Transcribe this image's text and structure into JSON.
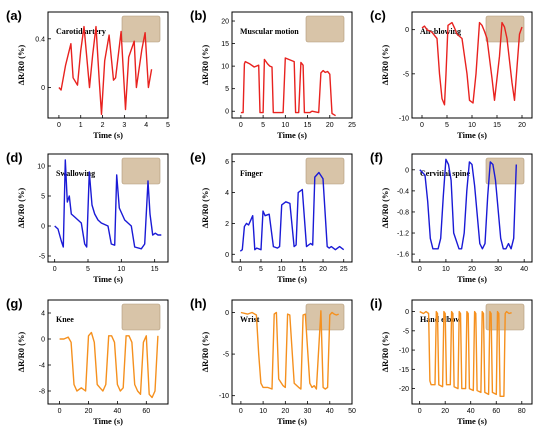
{
  "chart_data": [
    {
      "type": "line",
      "panel": "(a)",
      "title": "Carotid artery",
      "xlabel": "Time (s)",
      "ylabel": "ΔR/R0 (%)",
      "xlim": [
        -0.5,
        5
      ],
      "ylim": [
        -0.25,
        0.62
      ],
      "xticks": [
        0,
        1,
        2,
        3,
        4,
        5
      ],
      "yticks": [
        0.0,
        0.4
      ],
      "color": "#e8221f",
      "series": [
        {
          "x": [
            0,
            0.1,
            0.3,
            0.55,
            0.65,
            0.85,
            1.0,
            1.15,
            1.4,
            1.55,
            1.7,
            1.85,
            1.95,
            2.1,
            2.3,
            2.5,
            2.6,
            2.85,
            3.05,
            3.2,
            3.45,
            3.55,
            3.8,
            3.95,
            4.1,
            4.25
          ],
          "y": [
            0.0,
            -0.02,
            0.18,
            0.36,
            0.08,
            0.02,
            0.3,
            0.5,
            0.0,
            0.27,
            0.5,
            0.05,
            -0.22,
            0.22,
            0.43,
            0.06,
            0.08,
            0.46,
            -0.18,
            0.25,
            0.38,
            0.0,
            0.31,
            0.45,
            0.0,
            0.15
          ]
        }
      ]
    },
    {
      "type": "line",
      "panel": "(b)",
      "title": "Muscular motion",
      "xlabel": "Time (s)",
      "ylabel": "ΔR/R0 (%)",
      "xlim": [
        -2,
        25
      ],
      "ylim": [
        -1.5,
        22
      ],
      "xticks": [
        0,
        5,
        10,
        15,
        20,
        25
      ],
      "yticks": [
        0,
        5,
        10,
        15,
        20
      ],
      "color": "#e8221f",
      "series": [
        {
          "x": [
            0,
            0.5,
            0.8,
            1.0,
            2.0,
            3.0,
            4.0,
            4.3,
            5.0,
            5.3,
            6.0,
            6.5,
            7.0,
            7.3,
            9.5,
            10.0,
            12.0,
            12.3,
            13.0,
            13.5,
            14.0,
            14.3,
            15.5,
            16.0,
            17.5,
            18.0,
            18.5,
            19.0,
            19.5,
            20.0,
            20.5,
            21.0,
            21.3
          ],
          "y": [
            -0.3,
            -0.3,
            10.5,
            11.0,
            10.5,
            9.8,
            10.2,
            -0.3,
            -0.3,
            11.5,
            10.5,
            10.0,
            9.8,
            -0.3,
            -0.3,
            11.8,
            11.0,
            -0.3,
            -0.3,
            10.8,
            10.2,
            -0.3,
            -0.3,
            0.0,
            -0.3,
            8.5,
            9.0,
            8.6,
            8.8,
            8.2,
            -0.5,
            -0.8,
            -1.0
          ]
        }
      ]
    },
    {
      "type": "line",
      "panel": "(c)",
      "title": "Air-blowing",
      "xlabel": "Time (s)",
      "ylabel": "ΔR/R0 (%)",
      "xlim": [
        -2,
        22
      ],
      "ylim": [
        -10,
        2
      ],
      "xticks": [
        0,
        5,
        10,
        15,
        20
      ],
      "yticks": [
        0,
        -5,
        -10
      ],
      "color": "#e8221f",
      "series": [
        {
          "x": [
            0,
            0.5,
            1.0,
            2.0,
            3.0,
            3.5,
            4.0,
            4.5,
            4.8,
            5.2,
            6.0,
            6.5,
            7.0,
            8.0,
            9.0,
            9.5,
            10.2,
            10.8,
            11.5,
            12.0,
            12.5,
            13.0,
            14.0,
            14.5,
            15.5,
            16.0,
            16.5,
            17.0,
            18.0,
            18.5,
            19.5,
            20.0
          ],
          "y": [
            0.2,
            0.4,
            0.0,
            -0.3,
            -1.0,
            -5.0,
            -7.8,
            -8.5,
            -5.0,
            0.5,
            0.8,
            0.2,
            -0.5,
            -1.0,
            -5.0,
            -8.0,
            -8.3,
            -5.0,
            0.8,
            0.5,
            -0.2,
            -1.0,
            -5.5,
            -8.0,
            -3.0,
            0.8,
            0.3,
            -1.0,
            -6.0,
            -8.0,
            -0.5,
            0.3
          ]
        }
      ]
    },
    {
      "type": "line",
      "panel": "(d)",
      "title": "Swallowing",
      "xlabel": "Time (s)",
      "ylabel": "ΔR/R0 (%)",
      "xlim": [
        -1,
        17
      ],
      "ylim": [
        -6,
        12
      ],
      "xticks": [
        0,
        5,
        10,
        15
      ],
      "yticks": [
        -5,
        0,
        5,
        10
      ],
      "color": "#1a1ad6",
      "series": [
        {
          "x": [
            0,
            0.5,
            1.0,
            1.3,
            1.6,
            1.9,
            2.2,
            2.5,
            3.0,
            3.5,
            4.0,
            4.5,
            4.8,
            5.2,
            5.6,
            6.0,
            6.5,
            7.0,
            8.0,
            8.5,
            9.0,
            9.3,
            9.7,
            10.1,
            10.5,
            11.0,
            11.5,
            12.0,
            13.0,
            13.5,
            14.0,
            14.3,
            14.7,
            15.1,
            15.5,
            16.0
          ],
          "y": [
            0,
            -0.5,
            -2.5,
            -3.5,
            11.0,
            4.0,
            5.0,
            2.0,
            1.5,
            1.0,
            0.5,
            -3.0,
            -3.5,
            9.0,
            3.5,
            2.0,
            1.0,
            0.5,
            0.0,
            -3.0,
            -3.2,
            8.5,
            3.0,
            2.0,
            1.0,
            0.5,
            0.0,
            -3.5,
            -3.8,
            -3.0,
            7.5,
            2.0,
            -1.5,
            -1.2,
            -1.5,
            -1.5
          ]
        }
      ]
    },
    {
      "type": "line",
      "panel": "(e)",
      "title": "Finger",
      "xlabel": "Time (s)",
      "ylabel": "ΔR/R0 (%)",
      "xlim": [
        -2,
        27
      ],
      "ylim": [
        -0.5,
        6.5
      ],
      "xticks": [
        0,
        5,
        10,
        15,
        20,
        25
      ],
      "yticks": [
        0,
        2,
        4,
        6
      ],
      "color": "#1a1ad6",
      "series": [
        {
          "x": [
            0,
            0.5,
            1.0,
            1.5,
            2.0,
            3.0,
            3.5,
            4.0,
            5.0,
            5.5,
            6.0,
            7.0,
            8.0,
            9.0,
            9.5,
            10.0,
            11.0,
            12.0,
            13.0,
            13.5,
            14.0,
            15.0,
            16.0,
            17.0,
            17.5,
            18.0,
            19.0,
            20.0,
            21.0,
            21.5,
            22.0,
            23.0,
            24.0,
            25.0
          ],
          "y": [
            0.2,
            0.3,
            1.8,
            2.0,
            1.9,
            2.5,
            0.3,
            0.4,
            0.3,
            2.8,
            2.5,
            2.6,
            0.5,
            0.4,
            0.5,
            3.2,
            3.4,
            3.3,
            0.5,
            0.6,
            4.0,
            4.2,
            0.5,
            0.7,
            0.6,
            5.0,
            5.3,
            4.9,
            0.5,
            0.4,
            0.5,
            0.3,
            0.5,
            0.3
          ]
        }
      ]
    },
    {
      "type": "line",
      "panel": "(f)",
      "title": "Cervitial spine",
      "xlabel": "Time (s)",
      "ylabel": "ΔR/R0 (%)",
      "xlim": [
        -3,
        43
      ],
      "ylim": [
        -1.75,
        0.3
      ],
      "xticks": [
        0,
        10,
        20,
        30,
        40
      ],
      "yticks": [
        0.0,
        -0.4,
        -0.8,
        -1.2,
        -1.6
      ],
      "color": "#1a1ad6",
      "series": [
        {
          "x": [
            0,
            2,
            3,
            4,
            5,
            7,
            8,
            9,
            10,
            11,
            12,
            13,
            15,
            16,
            17,
            18,
            19,
            20,
            21,
            23,
            24,
            25,
            26,
            27,
            28,
            29,
            31,
            32,
            33,
            34,
            35,
            36,
            37
          ],
          "y": [
            0.0,
            -0.1,
            -0.6,
            -1.3,
            -1.5,
            -1.5,
            -1.3,
            -0.5,
            0.2,
            0.1,
            -0.2,
            -1.2,
            -1.5,
            -1.5,
            -1.2,
            -0.4,
            0.15,
            0.1,
            -0.3,
            -1.4,
            -1.5,
            -1.4,
            -0.5,
            0.15,
            0.1,
            -0.2,
            -1.3,
            -1.5,
            -1.5,
            -1.4,
            -1.5,
            -1.3,
            0.1
          ]
        }
      ]
    },
    {
      "type": "line",
      "panel": "(g)",
      "title": "Knee",
      "xlabel": "Time (s)",
      "ylabel": "ΔR/R0 (%)",
      "xlim": [
        -8,
        75
      ],
      "ylim": [
        -10,
        6
      ],
      "xticks": [
        0,
        20,
        40,
        60
      ],
      "yticks": [
        4,
        0,
        -4,
        -8
      ],
      "color": "#f5901e",
      "series": [
        {
          "x": [
            0,
            3,
            6,
            8,
            10,
            12,
            15,
            18,
            20,
            22,
            24,
            26,
            28,
            30,
            32,
            34,
            36,
            38,
            40,
            42,
            44,
            46,
            48,
            50,
            52,
            54,
            56,
            58,
            60,
            62,
            64,
            66,
            68
          ],
          "y": [
            0,
            0,
            0.3,
            -0.5,
            -7,
            -8,
            -7.5,
            -8,
            0.5,
            1,
            -0.5,
            -7,
            -7.5,
            -8,
            -7,
            0.5,
            0.5,
            -0.5,
            -7,
            -8,
            -7.5,
            0.5,
            0.5,
            -0.5,
            -7,
            -8,
            -8.5,
            -0.5,
            0.5,
            -8.5,
            -9,
            -8,
            0.5
          ]
        }
      ]
    },
    {
      "type": "line",
      "panel": "(h)",
      "title": "Wrist",
      "xlabel": "Time (s)",
      "ylabel": "ΔR/R0 (%)",
      "xlim": [
        -4,
        50
      ],
      "ylim": [
        -11,
        1.5
      ],
      "xticks": [
        0,
        10,
        20,
        30,
        40,
        50
      ],
      "yticks": [
        0,
        -5,
        -10
      ],
      "color": "#f5901e",
      "series": [
        {
          "x": [
            0,
            3,
            5,
            7,
            8,
            9,
            10,
            12,
            14,
            15,
            16,
            17,
            19,
            20,
            21,
            22,
            24,
            26,
            27,
            28,
            29,
            31,
            32,
            33,
            34,
            36,
            37,
            38,
            39,
            40,
            41,
            42,
            43,
            44
          ],
          "y": [
            0,
            -0.2,
            0,
            -0.3,
            -5,
            -8.5,
            -9,
            -9,
            -9.2,
            -0.2,
            0,
            -8,
            -8.8,
            -9,
            -0.2,
            -0.3,
            -8.5,
            -9,
            -9.2,
            -0.3,
            -0.2,
            -8.5,
            -9,
            -8.8,
            -9.2,
            0.2,
            -9,
            -9.2,
            -9,
            -0.3,
            0,
            -0.2,
            -0.3,
            -0.2
          ]
        }
      ]
    },
    {
      "type": "line",
      "panel": "(i)",
      "title": "Hand elbow",
      "xlabel": "Time (s)",
      "ylabel": "ΔR/R0 (%)",
      "xlim": [
        -6,
        88
      ],
      "ylim": [
        -24,
        3
      ],
      "xticks": [
        0,
        20,
        40,
        60,
        80
      ],
      "yticks": [
        0,
        -5,
        -10,
        -15,
        -20
      ],
      "color": "#f5901e",
      "series": [
        {
          "x": [
            0,
            3,
            5,
            7,
            8,
            9,
            12,
            13,
            14,
            15,
            18,
            19,
            20,
            21,
            24,
            25,
            26,
            27,
            30,
            31,
            32,
            33,
            36,
            37,
            38,
            39,
            42,
            43,
            44,
            45,
            48,
            49,
            50,
            51,
            54,
            55,
            56,
            57,
            60,
            61,
            62,
            63,
            66,
            67,
            68,
            70,
            72
          ],
          "y": [
            0,
            -0.5,
            0,
            -0.5,
            -18,
            -19,
            -19,
            0,
            -0.5,
            -19,
            -19.5,
            0,
            -0.5,
            -19,
            -19,
            0,
            -0.5,
            -19.5,
            -20,
            0,
            -0.5,
            -20,
            -20,
            0,
            -0.5,
            -20,
            -20.5,
            0,
            -0.5,
            -20.5,
            -21,
            0,
            -0.5,
            -21,
            -21.5,
            0,
            -0.5,
            -21,
            -21.5,
            0,
            -0.5,
            -22,
            -22,
            -0.5,
            0,
            -0.5,
            -0.3
          ]
        }
      ]
    }
  ]
}
